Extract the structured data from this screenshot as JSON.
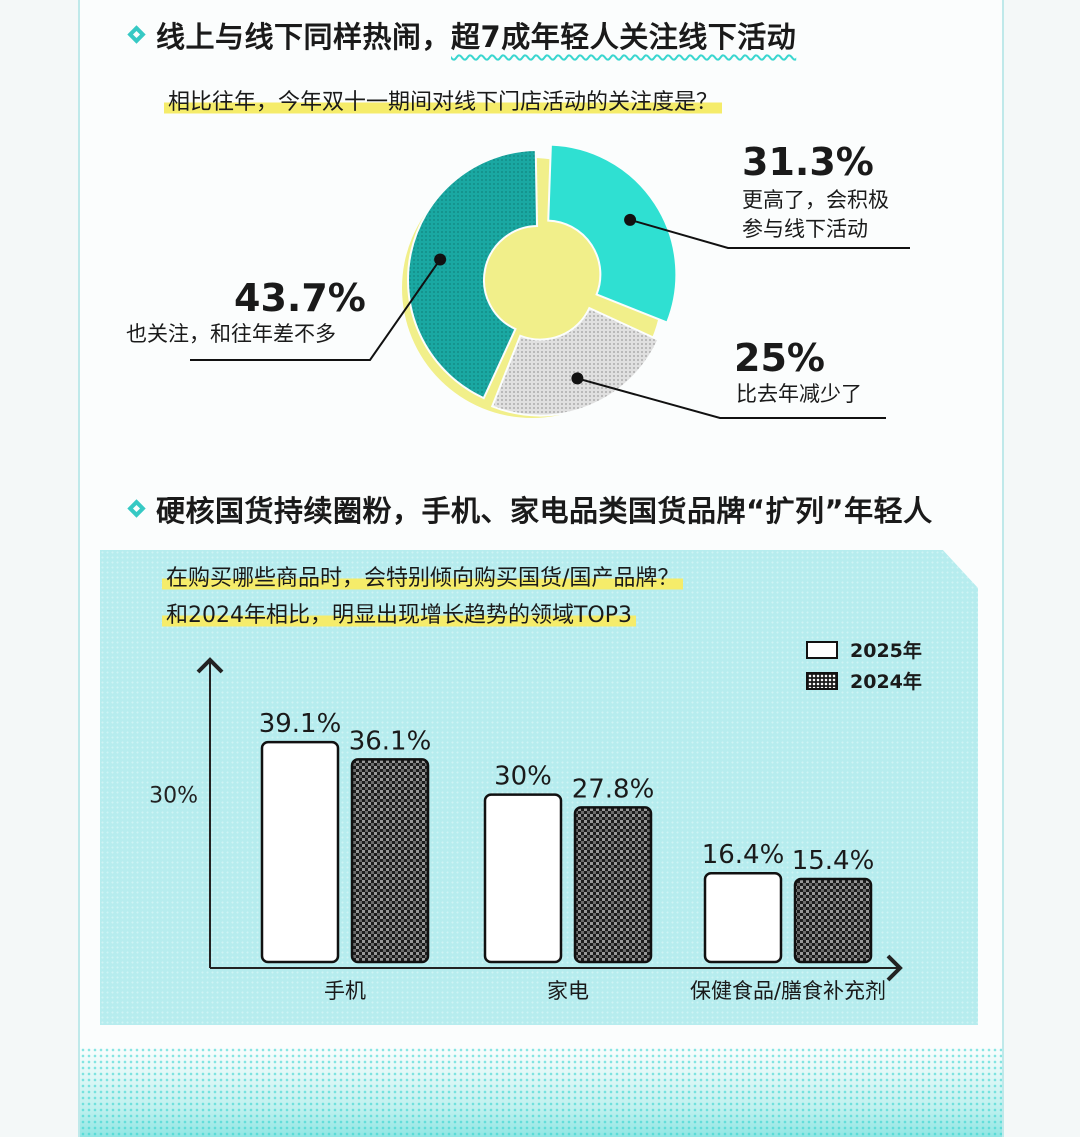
{
  "section1": {
    "title_part1": "线上与线下同样热闹，",
    "title_part2": "超7成年轻人关注线下活动",
    "question": "相比往年，今年双十一期间对线下门店活动的关注度是？"
  },
  "section2": {
    "title": "硬核国货持续圈粉，手机、家电品类国货品牌“扩列”年轻人",
    "question_line1": "在购买哪些商品时，会特别倾向购买国货/国产品牌？",
    "question_line2": "和2024年相比，明显出现增长趋势的领域TOP3"
  },
  "chart_data": [
    {
      "type": "pie",
      "categories": [
        "更高了，会积极参与线下活动",
        "也关注，和往年差不多",
        "比去年减少了"
      ],
      "values": [
        31.3,
        43.7,
        25
      ],
      "labels": [
        "31.3%",
        "43.7%",
        "25%"
      ],
      "label_lines": [
        [
          "更高了，会积极",
          "参与线下活动"
        ],
        [
          "也关注，和往年差不多"
        ],
        [
          "比去年减少了"
        ]
      ],
      "colors": [
        "#2fe0d2",
        "#1aa8a2",
        "#d4d4d4"
      ]
    },
    {
      "type": "bar",
      "categories": [
        "手机",
        "家电",
        "保健食品/膳食补充剂"
      ],
      "series": [
        {
          "name": "2025年",
          "values": [
            39.1,
            30,
            16.4
          ],
          "labels": [
            "39.1%",
            "30%",
            "16.4%"
          ]
        },
        {
          "name": "2024年",
          "values": [
            36.1,
            27.8,
            15.4
          ],
          "labels": [
            "36.1%",
            "27.8%",
            "15.4%"
          ]
        }
      ],
      "ytick_label": "30%",
      "ytick_value": 30,
      "ylim": [
        0,
        45
      ],
      "colors": {
        "2025": "#ffffff",
        "2024": "#1a1a1a"
      }
    }
  ]
}
